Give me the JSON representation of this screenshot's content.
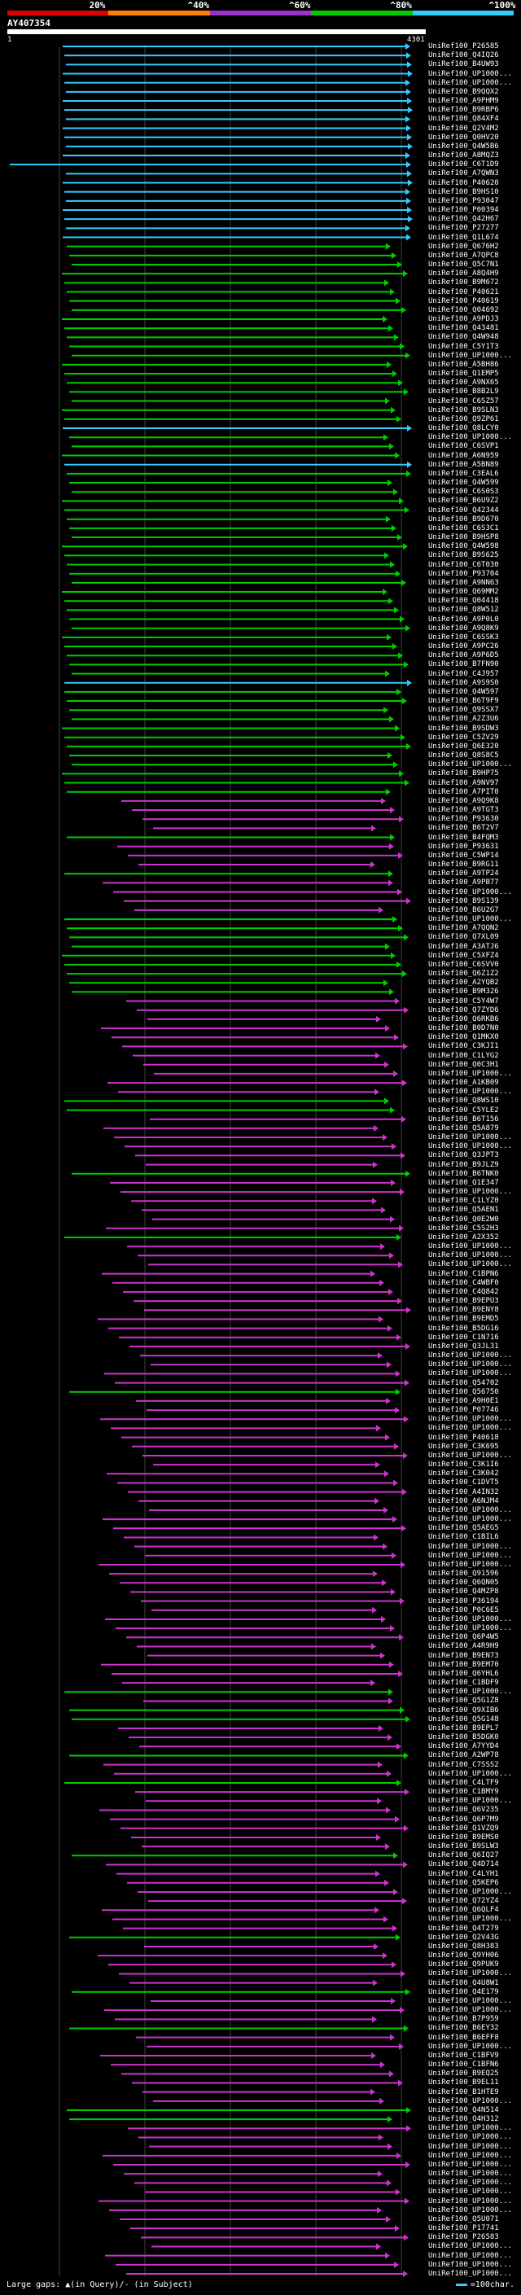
{
  "query": {
    "id": "AY407354",
    "start": "1",
    "end": "4301"
  },
  "identity_scale": [
    {
      "label": "20%",
      "color": "#e00000"
    },
    {
      "label": "^40%",
      "color": "#ff8000"
    },
    {
      "label": "^60%",
      "color": "#9933cc"
    },
    {
      "label": "^80%",
      "color": "#00cc00"
    },
    {
      "label": "^100%",
      "color": "#33ccff"
    }
  ],
  "footer": {
    "gap_hint": "Large gaps: ▲(in Query)/- (in Subject)",
    "legend": "=100char."
  },
  "colors": {
    "cyan": "#33ccff",
    "green": "#00cc00",
    "magenta": "#cc33cc"
  },
  "hits": [
    {
      "id": "UniRef100_P26585",
      "color": "cyan"
    },
    {
      "id": "UniRef100_Q4IQ26",
      "color": "cyan"
    },
    {
      "id": "UniRef100_B4UW93",
      "color": "cyan"
    },
    {
      "id": "UniRef100_UP1000...",
      "color": "cyan"
    },
    {
      "id": "UniRef100_UP1000...",
      "color": "cyan"
    },
    {
      "id": "UniRef100_B9QQX2",
      "color": "cyan"
    },
    {
      "id": "UniRef100_A9PHM9",
      "color": "cyan"
    },
    {
      "id": "UniRef100_B9RBP6",
      "color": "cyan"
    },
    {
      "id": "UniRef100_Q84XF4",
      "color": "cyan"
    },
    {
      "id": "UniRef100_Q2V4M2",
      "color": "cyan"
    },
    {
      "id": "UniRef100_Q0HV20",
      "color": "cyan"
    },
    {
      "id": "UniRef100_Q4W5B6",
      "color": "cyan"
    },
    {
      "id": "UniRef100_A8MQZ3",
      "color": "cyan"
    },
    {
      "id": "UniRef100_C6T1D9",
      "color": "cyan"
    },
    {
      "id": "UniRef100_A7QWN3",
      "color": "cyan"
    },
    {
      "id": "UniRef100_P40620",
      "color": "cyan"
    },
    {
      "id": "UniRef100_B9HS10",
      "color": "cyan"
    },
    {
      "id": "UniRef100_P93047",
      "color": "cyan"
    },
    {
      "id": "UniRef100_P00394",
      "color": "cyan"
    },
    {
      "id": "UniRef100_Q42H67",
      "color": "cyan"
    },
    {
      "id": "UniRef100_P27277",
      "color": "cyan"
    },
    {
      "id": "UniRef100_Q1L674",
      "color": "cyan"
    },
    {
      "id": "UniRef100_Q676H2",
      "color": "green"
    },
    {
      "id": "UniRef100_A7QPC8",
      "color": "green"
    },
    {
      "id": "UniRef100_Q5C7N1",
      "color": "green"
    },
    {
      "id": "UniRef100_A8Q4H9",
      "color": "green"
    },
    {
      "id": "UniRef100_B9M672",
      "color": "green"
    },
    {
      "id": "UniRef100_P40621",
      "color": "green"
    },
    {
      "id": "UniRef100_P40619",
      "color": "green"
    },
    {
      "id": "UniRef100_Q04692",
      "color": "green"
    },
    {
      "id": "UniRef100_A9PDJ3",
      "color": "green"
    },
    {
      "id": "UniRef100_Q43481",
      "color": "green"
    },
    {
      "id": "UniRef100_Q4W948",
      "color": "green"
    },
    {
      "id": "UniRef100_C5Y1T3",
      "color": "green"
    },
    {
      "id": "UniRef100_UP1000...",
      "color": "green"
    },
    {
      "id": "UniRef100_A5BH86",
      "color": "green"
    },
    {
      "id": "UniRef100_Q1EMP5",
      "color": "green"
    },
    {
      "id": "UniRef100_A9NX65",
      "color": "green"
    },
    {
      "id": "UniRef100_B8B2L9",
      "color": "green"
    },
    {
      "id": "UniRef100_C6SZ57",
      "color": "green"
    },
    {
      "id": "UniRef100_B9SLN3",
      "color": "green"
    },
    {
      "id": "UniRef100_Q9ZP61",
      "color": "green"
    },
    {
      "id": "UniRef100_Q8LCY0",
      "color": "cyan"
    },
    {
      "id": "UniRef100_UP1000...",
      "color": "green"
    },
    {
      "id": "UniRef100_C6SVP1",
      "color": "green"
    },
    {
      "id": "UniRef100_A6N959",
      "color": "green"
    },
    {
      "id": "UniRef100_A5BN89",
      "color": "cyan"
    },
    {
      "id": "UniRef100_C3EAL6",
      "color": "green"
    },
    {
      "id": "UniRef100_Q4W599",
      "color": "green"
    },
    {
      "id": "UniRef100_C6S0S3",
      "color": "green"
    },
    {
      "id": "UniRef100_B6U9Z2",
      "color": "green"
    },
    {
      "id": "UniRef100_Q42344",
      "color": "green"
    },
    {
      "id": "UniRef100_B9D670",
      "color": "green"
    },
    {
      "id": "UniRef100_C6S3C1",
      "color": "green"
    },
    {
      "id": "UniRef100_B9HSP8",
      "color": "green"
    },
    {
      "id": "UniRef100_Q4W598",
      "color": "green"
    },
    {
      "id": "UniRef100_B9S625",
      "color": "green"
    },
    {
      "id": "UniRef100_C6T030",
      "color": "green"
    },
    {
      "id": "UniRef100_P93704",
      "color": "green"
    },
    {
      "id": "UniRef100_A9NN63",
      "color": "green"
    },
    {
      "id": "UniRef100_Q69MM2",
      "color": "green"
    },
    {
      "id": "UniRef100_Q04418",
      "color": "green"
    },
    {
      "id": "UniRef100_Q8W512",
      "color": "green"
    },
    {
      "id": "UniRef100_A9P0L0",
      "color": "green"
    },
    {
      "id": "UniRef100_A9Q8K9",
      "color": "green"
    },
    {
      "id": "UniRef100_C6SSK3",
      "color": "green"
    },
    {
      "id": "UniRef100_A9PC26",
      "color": "green"
    },
    {
      "id": "UniRef100_A9P6D5",
      "color": "green"
    },
    {
      "id": "UniRef100_B7FN90",
      "color": "green"
    },
    {
      "id": "UniRef100_C4J957",
      "color": "green"
    },
    {
      "id": "UniRef100_A9S9S0",
      "color": "cyan"
    },
    {
      "id": "UniRef100_Q4W597",
      "color": "green"
    },
    {
      "id": "UniRef100_B6T9F9",
      "color": "green"
    },
    {
      "id": "UniRef100_Q9SSX7",
      "color": "green"
    },
    {
      "id": "UniRef100_A2Z3U6",
      "color": "green"
    },
    {
      "id": "UniRef100_B9SDW3",
      "color": "green"
    },
    {
      "id": "UniRef100_C5ZV29",
      "color": "green"
    },
    {
      "id": "UniRef100_Q6E320",
      "color": "green"
    },
    {
      "id": "UniRef100_Q8S8C5",
      "color": "green"
    },
    {
      "id": "UniRef100_UP1000...",
      "color": "green"
    },
    {
      "id": "UniRef100_B9HP75",
      "color": "green"
    },
    {
      "id": "UniRef100_A9NV97",
      "color": "green"
    },
    {
      "id": "UniRef100_A7PIT0",
      "color": "green"
    },
    {
      "id": "UniRef100_A9Q9K8",
      "color": "magenta"
    },
    {
      "id": "UniRef100_A9TGT3",
      "color": "magenta"
    },
    {
      "id": "UniRef100_P93630",
      "color": "magenta"
    },
    {
      "id": "UniRef100_B6T2V7",
      "color": "magenta"
    },
    {
      "id": "UniRef100_B4FQM3",
      "color": "green"
    },
    {
      "id": "UniRef100_P93631",
      "color": "magenta"
    },
    {
      "id": "UniRef100_C5WP14",
      "color": "magenta"
    },
    {
      "id": "UniRef100_B9RG11",
      "color": "magenta"
    },
    {
      "id": "UniRef100_A9TP24",
      "color": "green"
    },
    {
      "id": "UniRef100_A9PB77",
      "color": "magenta"
    },
    {
      "id": "UniRef100_UP1000...",
      "color": "magenta"
    },
    {
      "id": "UniRef100_B9S139",
      "color": "magenta"
    },
    {
      "id": "UniRef100_B6U2G7",
      "color": "magenta"
    },
    {
      "id": "UniRef100_UP1000...",
      "color": "green"
    },
    {
      "id": "UniRef100_A7QQN2",
      "color": "green"
    },
    {
      "id": "UniRef100_Q7XL09",
      "color": "green"
    },
    {
      "id": "UniRef100_A3ATJ6",
      "color": "green"
    },
    {
      "id": "UniRef100_C5XFZ4",
      "color": "green"
    },
    {
      "id": "UniRef100_C6SVV0",
      "color": "green"
    },
    {
      "id": "UniRef100_Q6Z1Z2",
      "color": "green"
    },
    {
      "id": "UniRef100_A2YQB2",
      "color": "green"
    },
    {
      "id": "UniRef100_B9M326",
      "color": "green"
    },
    {
      "id": "UniRef100_C5Y4W7",
      "color": "magenta"
    },
    {
      "id": "UniRef100_Q7ZYD6",
      "color": "magenta"
    },
    {
      "id": "UniRef100_Q6RKB6",
      "color": "magenta"
    },
    {
      "id": "UniRef100_B0D7N0",
      "color": "magenta"
    },
    {
      "id": "UniRef100_Q1MKX0",
      "color": "magenta"
    },
    {
      "id": "UniRef100_C3KJI1",
      "color": "magenta"
    },
    {
      "id": "UniRef100_C1LYG2",
      "color": "magenta"
    },
    {
      "id": "UniRef100_Q0C3H1",
      "color": "magenta"
    },
    {
      "id": "UniRef100_UP1000...",
      "color": "magenta"
    },
    {
      "id": "UniRef100_A1KB09",
      "color": "magenta"
    },
    {
      "id": "UniRef100_UP1000...",
      "color": "magenta"
    },
    {
      "id": "UniRef100_Q8WS10",
      "color": "green"
    },
    {
      "id": "UniRef100_C5YLE2",
      "color": "green"
    },
    {
      "id": "UniRef100_B6T156",
      "color": "magenta"
    },
    {
      "id": "UniRef100_Q5A879",
      "color": "magenta"
    },
    {
      "id": "UniRef100_UP1000...",
      "color": "magenta"
    },
    {
      "id": "UniRef100_UP1000...",
      "color": "magenta"
    },
    {
      "id": "UniRef100_Q3JPT3",
      "color": "magenta"
    },
    {
      "id": "UniRef100_B9JLZ9",
      "color": "magenta"
    },
    {
      "id": "UniRef100_B6TNK0",
      "color": "green"
    },
    {
      "id": "UniRef100_Q1E347",
      "color": "magenta"
    },
    {
      "id": "UniRef100_UP1000...",
      "color": "magenta"
    },
    {
      "id": "UniRef100_C1LYZ0",
      "color": "magenta"
    },
    {
      "id": "UniRef100_Q5AEN1",
      "color": "magenta"
    },
    {
      "id": "UniRef100_Q0E2W0",
      "color": "magenta"
    },
    {
      "id": "UniRef100_C5S2H3",
      "color": "magenta"
    },
    {
      "id": "UniRef100_A2X352",
      "color": "green"
    },
    {
      "id": "UniRef100_UP1000...",
      "color": "magenta"
    },
    {
      "id": "UniRef100_UP1000...",
      "color": "magenta"
    },
    {
      "id": "UniRef100_UP1000...",
      "color": "magenta"
    },
    {
      "id": "UniRef100_C1BPN6",
      "color": "magenta"
    },
    {
      "id": "UniRef100_C4WBF0",
      "color": "magenta"
    },
    {
      "id": "UniRef100_C4Q842",
      "color": "magenta"
    },
    {
      "id": "UniRef100_B9EPU3",
      "color": "magenta"
    },
    {
      "id": "UniRef100_B9ENY8",
      "color": "magenta"
    },
    {
      "id": "UniRef100_B9EMD5",
      "color": "magenta"
    },
    {
      "id": "UniRef100_B5DG16",
      "color": "magenta"
    },
    {
      "id": "UniRef100_C1N716",
      "color": "magenta"
    },
    {
      "id": "UniRef100_Q3JL31",
      "color": "magenta"
    },
    {
      "id": "UniRef100_UP1000...",
      "color": "magenta"
    },
    {
      "id": "UniRef100_UP1000...",
      "color": "magenta"
    },
    {
      "id": "UniRef100_UP1000...",
      "color": "magenta"
    },
    {
      "id": "UniRef100_Q54702",
      "color": "magenta"
    },
    {
      "id": "UniRef100_Q56750",
      "color": "green"
    },
    {
      "id": "UniRef100_A9H0E1",
      "color": "magenta"
    },
    {
      "id": "UniRef100_P07746",
      "color": "magenta"
    },
    {
      "id": "UniRef100_UP1000...",
      "color": "magenta"
    },
    {
      "id": "UniRef100_UP1000...",
      "color": "magenta"
    },
    {
      "id": "UniRef100_P40618",
      "color": "magenta"
    },
    {
      "id": "UniRef100_C3K695",
      "color": "magenta"
    },
    {
      "id": "UniRef100_UP1000...",
      "color": "magenta"
    },
    {
      "id": "UniRef100_C3K1I6",
      "color": "magenta"
    },
    {
      "id": "UniRef100_C3K042",
      "color": "magenta"
    },
    {
      "id": "UniRef100_C1DVT5",
      "color": "magenta"
    },
    {
      "id": "UniRef100_A4IN32",
      "color": "magenta"
    },
    {
      "id": "UniRef100_A6NJM4",
      "color": "magenta"
    },
    {
      "id": "UniRef100_UP1000...",
      "color": "magenta"
    },
    {
      "id": "UniRef100_UP1000...",
      "color": "magenta"
    },
    {
      "id": "UniRef100_Q5AEG5",
      "color": "magenta"
    },
    {
      "id": "UniRef100_C1BIL6",
      "color": "magenta"
    },
    {
      "id": "UniRef100_UP1000...",
      "color": "magenta"
    },
    {
      "id": "UniRef100_UP1000...",
      "color": "magenta"
    },
    {
      "id": "UniRef100_UP1000...",
      "color": "magenta"
    },
    {
      "id": "UniRef100_Q91596",
      "color": "magenta"
    },
    {
      "id": "UniRef100_Q6QN05",
      "color": "magenta"
    },
    {
      "id": "UniRef100_Q4MZP8",
      "color": "magenta"
    },
    {
      "id": "UniRef100_P36194",
      "color": "magenta"
    },
    {
      "id": "UniRef100_P0C6E5",
      "color": "magenta"
    },
    {
      "id": "UniRef100_UP1000...",
      "color": "magenta"
    },
    {
      "id": "UniRef100_UP1000...",
      "color": "magenta"
    },
    {
      "id": "UniRef100_Q6P4W5",
      "color": "magenta"
    },
    {
      "id": "UniRef100_A4R9H9",
      "color": "magenta"
    },
    {
      "id": "UniRef100_B9EN73",
      "color": "magenta"
    },
    {
      "id": "UniRef100_B9EM70",
      "color": "magenta"
    },
    {
      "id": "UniRef100_Q6YHL6",
      "color": "magenta"
    },
    {
      "id": "UniRef100_C1BDF9",
      "color": "magenta"
    },
    {
      "id": "UniRef100_UP1000...",
      "color": "green"
    },
    {
      "id": "UniRef100_Q5G1Z8",
      "color": "magenta"
    },
    {
      "id": "UniRef100_Q9XIB6",
      "color": "green"
    },
    {
      "id": "UniRef100_Q5G148",
      "color": "green"
    },
    {
      "id": "UniRef100_B9EPL7",
      "color": "magenta"
    },
    {
      "id": "UniRef100_B5DGK0",
      "color": "magenta"
    },
    {
      "id": "UniRef100_A7YYD4",
      "color": "magenta"
    },
    {
      "id": "UniRef100_A2WP78",
      "color": "green"
    },
    {
      "id": "UniRef100_C7SSS2",
      "color": "magenta"
    },
    {
      "id": "UniRef100_UP1000...",
      "color": "magenta"
    },
    {
      "id": "UniRef100_C4LTF9",
      "color": "green"
    },
    {
      "id": "UniRef100_C1BMY9",
      "color": "magenta"
    },
    {
      "id": "UniRef100_UP1000...",
      "color": "magenta"
    },
    {
      "id": "UniRef100_Q6V235",
      "color": "magenta"
    },
    {
      "id": "UniRef100_Q6P7M9",
      "color": "magenta"
    },
    {
      "id": "UniRef100_Q1VZQ9",
      "color": "magenta"
    },
    {
      "id": "UniRef100_B9EMS0",
      "color": "magenta"
    },
    {
      "id": "UniRef100_B9SLW3",
      "color": "magenta"
    },
    {
      "id": "UniRef100_Q6IQ27",
      "color": "green"
    },
    {
      "id": "UniRef100_Q4D714",
      "color": "magenta"
    },
    {
      "id": "UniRef100_C4LYH1",
      "color": "magenta"
    },
    {
      "id": "UniRef100_Q5KEP6",
      "color": "magenta"
    },
    {
      "id": "UniRef100_UP1000...",
      "color": "magenta"
    },
    {
      "id": "UniRef100_Q72YZ4",
      "color": "magenta"
    },
    {
      "id": "UniRef100_Q6QLF4",
      "color": "magenta"
    },
    {
      "id": "UniRef100_UP1000...",
      "color": "magenta"
    },
    {
      "id": "UniRef100_Q4T279",
      "color": "magenta"
    },
    {
      "id": "UniRef100_Q2V43G",
      "color": "green"
    },
    {
      "id": "UniRef100_Q8H383",
      "color": "magenta"
    },
    {
      "id": "UniRef100_Q9YH06",
      "color": "magenta"
    },
    {
      "id": "UniRef100_Q9PUK9",
      "color": "magenta"
    },
    {
      "id": "UniRef100_UP1000...",
      "color": "magenta"
    },
    {
      "id": "UniRef100_Q4U8W1",
      "color": "magenta"
    },
    {
      "id": "UniRef100_Q4E179",
      "color": "green"
    },
    {
      "id": "UniRef100_UP1000...",
      "color": "magenta"
    },
    {
      "id": "UniRef100_UP1000...",
      "color": "magenta"
    },
    {
      "id": "UniRef100_B7P959",
      "color": "magenta"
    },
    {
      "id": "UniRef100_B6EY32",
      "color": "green"
    },
    {
      "id": "UniRef100_B6EFF8",
      "color": "magenta"
    },
    {
      "id": "UniRef100_UP1000...",
      "color": "magenta"
    },
    {
      "id": "UniRef100_C1BFV9",
      "color": "magenta"
    },
    {
      "id": "UniRef100_C1BFN6",
      "color": "magenta"
    },
    {
      "id": "UniRef100_B9EQ25",
      "color": "magenta"
    },
    {
      "id": "UniRef100_B9EL11",
      "color": "magenta"
    },
    {
      "id": "UniRef100_B1HTE9",
      "color": "magenta"
    },
    {
      "id": "UniRef100_UP1000...",
      "color": "magenta"
    },
    {
      "id": "UniRef100_Q4N514",
      "color": "green"
    },
    {
      "id": "UniRef100_Q4H312",
      "color": "green"
    },
    {
      "id": "UniRef100_UP1000...",
      "color": "magenta"
    },
    {
      "id": "UniRef100_UP1000...",
      "color": "magenta"
    },
    {
      "id": "UniRef100_UP1000...",
      "color": "magenta"
    },
    {
      "id": "UniRef100_UP1000...",
      "color": "magenta"
    },
    {
      "id": "UniRef100_UP1000...",
      "color": "magenta"
    },
    {
      "id": "UniRef100_UP1000...",
      "color": "magenta"
    },
    {
      "id": "UniRef100_UP1000...",
      "color": "magenta"
    },
    {
      "id": "UniRef100_UP1000...",
      "color": "magenta"
    },
    {
      "id": "UniRef100_UP1000...",
      "color": "magenta"
    },
    {
      "id": "UniRef100_UP1000...",
      "color": "magenta"
    },
    {
      "id": "UniRef100_Q5U071",
      "color": "magenta"
    },
    {
      "id": "UniRef100_P17741",
      "color": "magenta"
    },
    {
      "id": "UniRef100_P26583",
      "color": "magenta"
    },
    {
      "id": "UniRef100_UP1000...",
      "color": "magenta"
    },
    {
      "id": "UniRef100_UP1000...",
      "color": "magenta"
    },
    {
      "id": "UniRef100_UP1000...",
      "color": "magenta"
    },
    {
      "id": "UniRef100_UP1000...",
      "color": "magenta"
    }
  ]
}
